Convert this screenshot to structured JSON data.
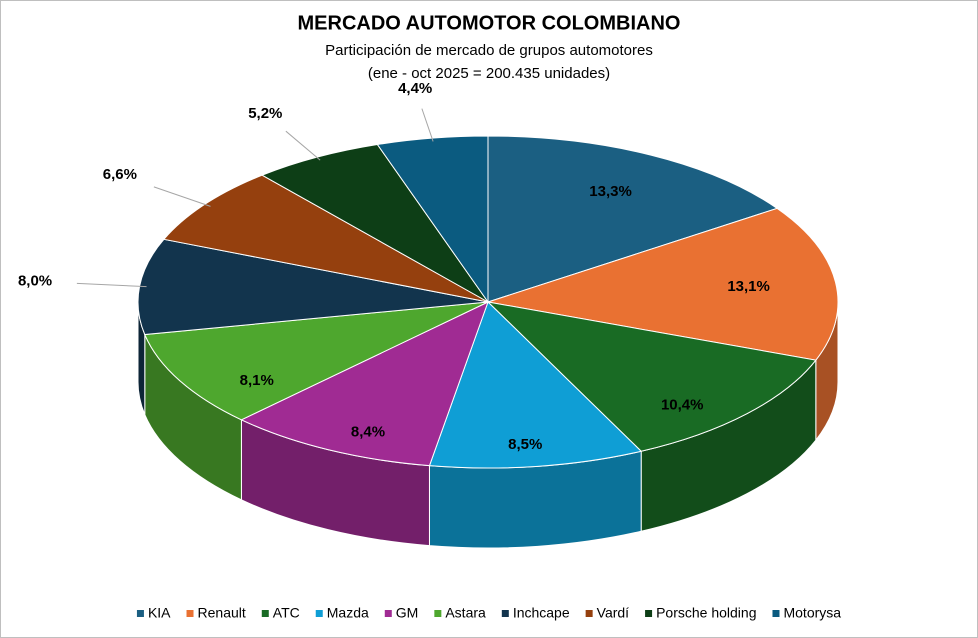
{
  "chart_data": {
    "type": "pie3d",
    "title": "MERCADO AUTOMOTOR COLOMBIANO",
    "subtitle": "Participación de mercado de grupos automotores",
    "subtitle2": "(ene - oct 2025 = 200.435 unidades)",
    "series": [
      {
        "name": "KIA",
        "color": "#1b5f82",
        "values": [
          13.3
        ],
        "value_labels": [
          "13,3%"
        ]
      },
      {
        "name": "Renault",
        "color": "#e97132",
        "values": [
          13.1
        ],
        "value_labels": [
          "13,1%"
        ]
      },
      {
        "name": "ATC",
        "color": "#196b24",
        "values": [
          10.4
        ],
        "value_labels": [
          "10,4%"
        ]
      },
      {
        "name": "Mazda",
        "color": "#0f9ed5",
        "values": [
          8.5
        ],
        "value_labels": [
          "8,5%"
        ]
      },
      {
        "name": "GM",
        "color": "#a02b93",
        "values": [
          8.4
        ],
        "value_labels": [
          "8,4%"
        ]
      },
      {
        "name": "Astara",
        "color": "#4ea72e",
        "values": [
          8.1
        ],
        "value_labels": [
          "8,1%"
        ]
      },
      {
        "name": "Inchcape",
        "color": "#12344d",
        "values": [
          8.0
        ],
        "value_labels": [
          "8,0%"
        ]
      },
      {
        "name": "Vardí",
        "color": "#95400e",
        "values": [
          6.6
        ],
        "value_labels": [
          "6,6%"
        ]
      },
      {
        "name": "Porsche holding",
        "color": "#0d3e16",
        "values": [
          5.2
        ],
        "value_labels": [
          "5,2%"
        ]
      },
      {
        "name": "Motorysa",
        "color": "#0b5b80",
        "values": [
          4.4
        ],
        "value_labels": [
          "4,4%"
        ]
      }
    ]
  }
}
